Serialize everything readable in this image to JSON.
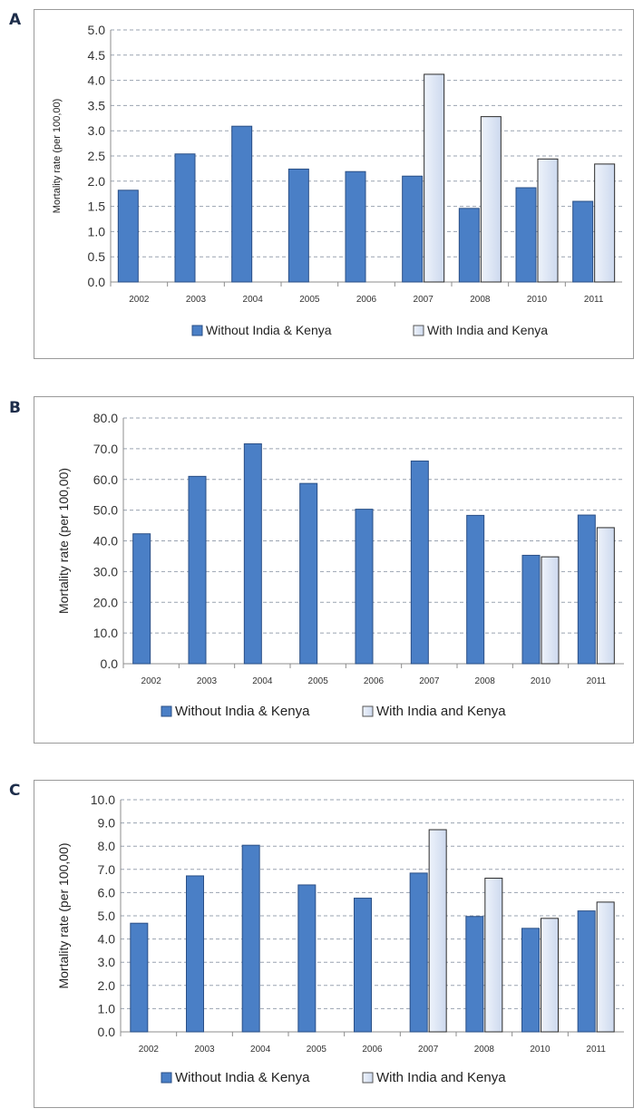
{
  "chart_data": [
    {
      "panel": "A",
      "type": "bar",
      "categories": [
        "2002",
        "2003",
        "2004",
        "2005",
        "2006",
        "2007",
        "2008",
        "2010",
        "2011"
      ],
      "ylabel": "Mortality rate (per 100,00)",
      "ylim": [
        0,
        5
      ],
      "yticks": [
        "0.0",
        "0.5",
        "1.0",
        "1.5",
        "2.0",
        "2.5",
        "3.0",
        "3.5",
        "4.0",
        "4.5",
        "5.0"
      ],
      "grid": true,
      "legend_position": "bottom",
      "series": [
        {
          "name": "Without India & Kenya",
          "color": "#4a7fc6",
          "values": [
            1.82,
            2.54,
            3.09,
            2.24,
            2.19,
            2.1,
            1.46,
            1.87,
            1.6
          ]
        },
        {
          "name": "With India and Kenya",
          "color": "#cdd9ee",
          "values": [
            null,
            null,
            null,
            null,
            null,
            4.12,
            3.28,
            2.44,
            2.34
          ]
        }
      ]
    },
    {
      "panel": "B",
      "type": "bar",
      "categories": [
        "2002",
        "2003",
        "2004",
        "2005",
        "2006",
        "2007",
        "2008",
        "2010",
        "2011"
      ],
      "ylabel": "Mortality rate (per 100,00)",
      "ylim": [
        0,
        80
      ],
      "yticks": [
        "0.0",
        "10.0",
        "20.0",
        "30.0",
        "40.0",
        "50.0",
        "60.0",
        "70.0",
        "80.0"
      ],
      "grid": true,
      "legend_position": "bottom",
      "series": [
        {
          "name": "Without India & Kenya",
          "color": "#4a7fc6",
          "values": [
            42.3,
            61.0,
            71.6,
            58.7,
            50.3,
            66.0,
            48.3,
            35.3,
            48.4
          ]
        },
        {
          "name": "With India and Kenya",
          "color": "#cdd9ee",
          "values": [
            null,
            null,
            null,
            null,
            null,
            null,
            null,
            34.8,
            44.3
          ]
        }
      ]
    },
    {
      "panel": "C",
      "type": "bar",
      "categories": [
        "2002",
        "2003",
        "2004",
        "2005",
        "2006",
        "2007",
        "2008",
        "2010",
        "2011"
      ],
      "ylabel": "Mortality rate (per 100,00)",
      "ylim": [
        0,
        10
      ],
      "yticks": [
        "0.0",
        "1.0",
        "2.0",
        "3.0",
        "4.0",
        "5.0",
        "6.0",
        "7.0",
        "8.0",
        "9.0",
        "10.0"
      ],
      "grid": true,
      "legend_position": "bottom",
      "series": [
        {
          "name": "Without India & Kenya",
          "color": "#4a7fc6",
          "values": [
            4.68,
            6.72,
            8.04,
            6.33,
            5.76,
            6.84,
            4.97,
            4.46,
            5.21
          ]
        },
        {
          "name": "With India and Kenya",
          "color": "#cdd9ee",
          "values": [
            null,
            null,
            null,
            null,
            null,
            8.71,
            6.62,
            4.89,
            5.59
          ]
        }
      ]
    }
  ]
}
